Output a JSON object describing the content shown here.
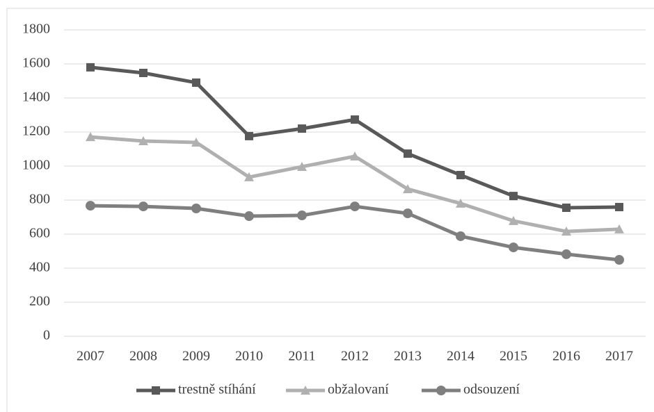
{
  "chart_data": {
    "type": "line",
    "categories": [
      "2007",
      "2008",
      "2009",
      "2010",
      "2011",
      "2012",
      "2013",
      "2014",
      "2015",
      "2016",
      "2017"
    ],
    "series": [
      {
        "name": "trestně stíhání",
        "color": "#595959",
        "marker": "square",
        "values": [
          1580,
          1547,
          1490,
          1176,
          1220,
          1273,
          1073,
          947,
          824,
          755,
          759
        ]
      },
      {
        "name": "obžalovaní",
        "color": "#b0b0b0",
        "marker": "triangle",
        "values": [
          1171,
          1147,
          1139,
          935,
          996,
          1057,
          865,
          780,
          678,
          616,
          629
        ]
      },
      {
        "name": "odsouzení",
        "color": "#7f7f7f",
        "marker": "circle",
        "values": [
          767,
          763,
          751,
          706,
          710,
          763,
          722,
          588,
          522,
          482,
          449
        ]
      }
    ],
    "ylim": [
      0,
      1800
    ],
    "yticks": [
      0,
      200,
      400,
      600,
      800,
      1000,
      1200,
      1400,
      1600,
      1800
    ],
    "grid": true,
    "legend": "bottom"
  }
}
